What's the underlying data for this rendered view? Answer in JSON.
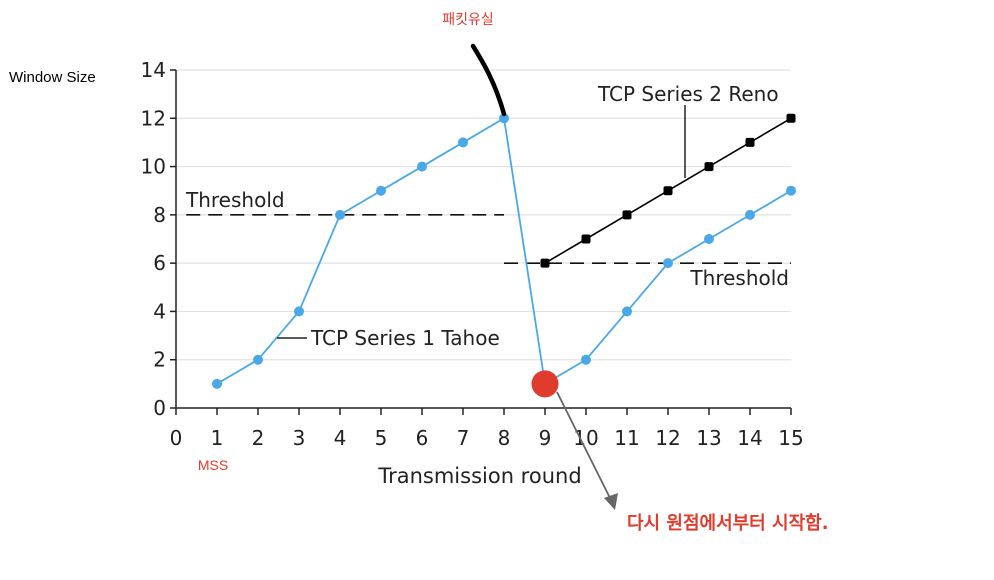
{
  "chart_data": {
    "type": "line",
    "xlabel": "Transmission round",
    "ylabel": "Window Size",
    "x_unit_label": "MSS",
    "xlim": [
      0,
      15
    ],
    "ylim": [
      0,
      14
    ],
    "xticks": [
      0,
      1,
      2,
      3,
      4,
      5,
      6,
      7,
      8,
      9,
      10,
      11,
      12,
      13,
      14,
      15
    ],
    "yticks": [
      0,
      2,
      4,
      6,
      8,
      10,
      12,
      14
    ],
    "grid": "horizontal",
    "series": [
      {
        "name": "TCP Series 1 Tahoe",
        "color": "#4aa8e8",
        "x": [
          1,
          2,
          3,
          4,
          5,
          6,
          7,
          8,
          9,
          10,
          11,
          12,
          13,
          14,
          15
        ],
        "y": [
          1,
          2,
          4,
          8,
          9,
          10,
          11,
          12,
          1,
          2,
          4,
          6,
          7,
          8,
          9
        ]
      },
      {
        "name": "TCP Series 2 Reno",
        "color": "#000000",
        "x": [
          9,
          10,
          11,
          12,
          13,
          14,
          15
        ],
        "y": [
          6,
          7,
          8,
          9,
          10,
          11,
          12
        ]
      }
    ],
    "thresholds": [
      {
        "label": "Threshold",
        "y": 8,
        "x_from": 0.25,
        "x_to": 8
      },
      {
        "label": "Threshold",
        "y": 6,
        "x_from": 8,
        "x_to": 15
      }
    ],
    "annotations": {
      "packet_loss": "패킷유실",
      "restart": "다시 원점에서부터 시작함.",
      "restart_point": {
        "x": 9,
        "y": 1
      },
      "restart_color": "#e03c2e"
    }
  }
}
